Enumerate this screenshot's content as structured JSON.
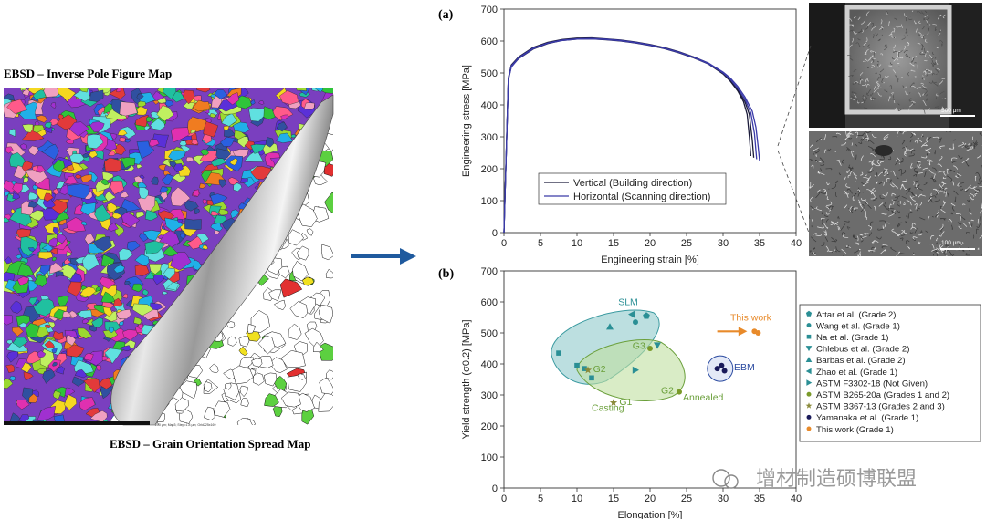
{
  "left_panel": {
    "top_label": "EBSD – Inverse Pole Figure Map",
    "bottom_label": "EBSD – Grain Orientation Spread Map",
    "scale_note": "200 μm; Map3; Step=1.8 μm; Grid225x169"
  },
  "micrographs": {
    "top_scale": "500 μm",
    "bottom_scale": "100 μm"
  },
  "watermark": "增材制造硕博联盟",
  "colors": {
    "arrow": "#1f5a9e",
    "vertical": "#1b1b3a",
    "horizontal": "#3a3aa8",
    "slm_fill": "#8fc9cc",
    "slm_stroke": "#3a9aa0",
    "annealed_fill": "#bfe0a0",
    "annealed_stroke": "#6a9f3a",
    "ebm": "#2a4aa0",
    "this_work": "#e88a2a"
  },
  "chart_data": [
    {
      "panel": "(a)",
      "type": "line",
      "xlabel": "Engineering strain [%]",
      "ylabel": "Engineering stress [MPa]",
      "xlim": [
        0,
        40
      ],
      "ylim": [
        0,
        700
      ],
      "xticks": [
        0,
        5,
        10,
        15,
        20,
        25,
        30,
        35,
        40
      ],
      "yticks": [
        0,
        100,
        200,
        300,
        400,
        500,
        600,
        700
      ],
      "legend_position": "bottom-center",
      "series": [
        {
          "name": "Vertical (Building direction)",
          "color": "#1b1b3a",
          "x": [
            0,
            0.6,
            1.0,
            2,
            4,
            6,
            8,
            10,
            12,
            14,
            16,
            18,
            20,
            22,
            24,
            26,
            28,
            30,
            31,
            32,
            32.8,
            33.3,
            33.6,
            33.8
          ],
          "y": [
            0,
            480,
            520,
            545,
            575,
            592,
            602,
            606,
            607,
            604,
            600,
            594,
            586,
            576,
            563,
            547,
            528,
            497,
            474,
            444,
            410,
            370,
            300,
            240
          ]
        },
        {
          "name": "Vertical (Building direction)",
          "color": "#1b1b3a",
          "hide_legend": true,
          "x": [
            0,
            0.6,
            1.0,
            2,
            4,
            6,
            8,
            10,
            12,
            14,
            16,
            18,
            20,
            22,
            24,
            26,
            28,
            30,
            31,
            32,
            33,
            33.6,
            34.0,
            34.2
          ],
          "y": [
            0,
            485,
            525,
            550,
            580,
            596,
            605,
            609,
            610,
            607,
            603,
            597,
            589,
            579,
            566,
            550,
            531,
            500,
            478,
            448,
            410,
            370,
            290,
            235
          ]
        },
        {
          "name": "Horizontal (Scanning direction)",
          "color": "#3a3aa8",
          "x": [
            0,
            0.6,
            1.0,
            2,
            4,
            6,
            8,
            10,
            12,
            14,
            16,
            18,
            20,
            22,
            24,
            26,
            28,
            30,
            31,
            32,
            33,
            34,
            34.5,
            34.8,
            35.0
          ],
          "y": [
            0,
            482,
            522,
            548,
            578,
            594,
            603,
            607,
            608,
            606,
            602,
            596,
            588,
            578,
            565,
            549,
            531,
            503,
            484,
            458,
            425,
            380,
            330,
            270,
            225
          ]
        },
        {
          "name": "Horizontal (Scanning direction)",
          "color": "#3a3aa8",
          "hide_legend": true,
          "x": [
            0,
            0.6,
            1.0,
            2,
            4,
            6,
            8,
            10,
            12,
            14,
            16,
            18,
            20,
            22,
            24,
            26,
            28,
            30,
            31,
            32,
            33,
            33.8,
            34.3,
            34.6
          ],
          "y": [
            0,
            478,
            518,
            546,
            576,
            593,
            602,
            606,
            607,
            605,
            601,
            595,
            587,
            577,
            564,
            548,
            529,
            500,
            480,
            452,
            418,
            375,
            310,
            230
          ]
        }
      ]
    },
    {
      "panel": "(b)",
      "type": "scatter",
      "xlabel": "Elongation [%]",
      "ylabel": "Yield strength (σ0.2) [MPa]",
      "xlim": [
        0,
        40
      ],
      "ylim": [
        0,
        700
      ],
      "xticks": [
        0,
        5,
        10,
        15,
        20,
        25,
        30,
        35,
        40
      ],
      "yticks": [
        0,
        100,
        200,
        300,
        400,
        500,
        600,
        700
      ],
      "legend_position": "outside-right",
      "region_labels": {
        "slm": "SLM",
        "annealed": "Annealed",
        "casting": "Casting",
        "ebm": "EBM",
        "this_work": "This work",
        "g1": "G1",
        "g2a": "G2",
        "g2b": "G2",
        "g3": "G3"
      },
      "series": [
        {
          "name": "Attar et al. (Grade 2)",
          "marker": "pentagon",
          "color": "#2a8f95",
          "points": [
            [
              19.5,
              555
            ]
          ]
        },
        {
          "name": "Wang et al. (Grade 1)",
          "marker": "circle",
          "color": "#2a8f95",
          "points": [
            [
              18,
              535
            ]
          ]
        },
        {
          "name": "Na et al. (Grade 1)",
          "marker": "square",
          "color": "#2a8f95",
          "points": [
            [
              7.5,
              435
            ],
            [
              10,
              395
            ],
            [
              11,
              385
            ],
            [
              12,
              355
            ]
          ]
        },
        {
          "name": "Chlebus et al. (Grade 2)",
          "marker": "triangle-down",
          "color": "#2a8f95",
          "points": [
            [
              21,
              460
            ]
          ]
        },
        {
          "name": "Barbas et al. (Grade 2)",
          "marker": "triangle-up",
          "color": "#2a8f95",
          "points": [
            [
              14.5,
              520
            ]
          ]
        },
        {
          "name": "Zhao et al. (Grade 1)",
          "marker": "triangle-left",
          "color": "#2a8f95",
          "points": [
            [
              17.5,
              560
            ]
          ]
        },
        {
          "name": "ASTM F3302-18 (Not Given)",
          "marker": "triangle-right",
          "color": "#2a8f95",
          "points": [
            [
              18,
              380
            ]
          ]
        },
        {
          "name": "ASTM B265-20a (Grades 1 and 2)",
          "marker": "circle",
          "color": "#7a9a2a",
          "points": [
            [
              20,
              450
            ],
            [
              24,
              310
            ]
          ]
        },
        {
          "name": "ASTM B367-13 (Grades 2 and 3)",
          "marker": "star",
          "color": "#8a8a3a",
          "points": [
            [
              11.5,
              380
            ],
            [
              15,
              275
            ]
          ]
        },
        {
          "name": "Yamanaka et al. (Grade 1)",
          "marker": "circle",
          "color": "#1a1a5a",
          "points": [
            [
              29.2,
              385
            ],
            [
              29.8,
              395
            ],
            [
              30.2,
              378
            ]
          ]
        },
        {
          "name": "This work (Grade 1)",
          "marker": "circle",
          "color": "#e88a2a",
          "points": [
            [
              34.3,
              505
            ],
            [
              34.8,
              500
            ]
          ]
        }
      ]
    }
  ]
}
